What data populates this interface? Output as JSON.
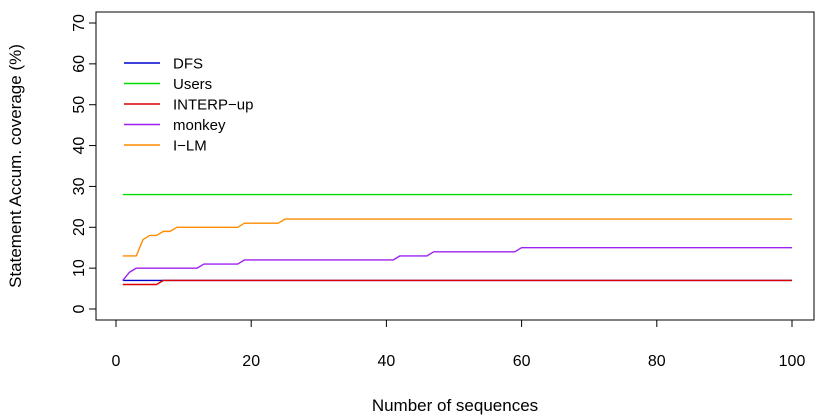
{
  "chart_data": {
    "type": "line",
    "title": "",
    "xlabel": "Number of sequences",
    "ylabel": "Statement Accum. coverage (%)",
    "xlim": [
      0,
      100
    ],
    "ylim": [
      0,
      70
    ],
    "x_ticks": [
      0,
      20,
      40,
      60,
      80,
      100
    ],
    "y_ticks": [
      0,
      10,
      20,
      30,
      40,
      50,
      60,
      70
    ],
    "grid": false,
    "legend_position": "top-left",
    "series": [
      {
        "name": "DFS",
        "color": "#0000CD",
        "points": [
          [
            1,
            7
          ],
          [
            100,
            7
          ]
        ]
      },
      {
        "name": "Users",
        "color": "#00DD00",
        "points": [
          [
            1,
            28
          ],
          [
            100,
            28
          ]
        ]
      },
      {
        "name": "INTERP−up",
        "color": "#DD0000",
        "points": [
          [
            1,
            6
          ],
          [
            6,
            6
          ],
          [
            7,
            7
          ],
          [
            100,
            7
          ]
        ]
      },
      {
        "name": "monkey",
        "color": "#A020F0",
        "points": [
          [
            1,
            7
          ],
          [
            2,
            9
          ],
          [
            3,
            10
          ],
          [
            12,
            10
          ],
          [
            13,
            11
          ],
          [
            18,
            11
          ],
          [
            19,
            12
          ],
          [
            41,
            12
          ],
          [
            42,
            13
          ],
          [
            46,
            13
          ],
          [
            47,
            14
          ],
          [
            59,
            14
          ],
          [
            60,
            15
          ],
          [
            100,
            15
          ]
        ]
      },
      {
        "name": "I−LM",
        "color": "#FF8C00",
        "points": [
          [
            1,
            13
          ],
          [
            3,
            13
          ],
          [
            4,
            17
          ],
          [
            5,
            18
          ],
          [
            6,
            18
          ],
          [
            7,
            19
          ],
          [
            8,
            19
          ],
          [
            9,
            20
          ],
          [
            18,
            20
          ],
          [
            19,
            21
          ],
          [
            24,
            21
          ],
          [
            25,
            22
          ],
          [
            100,
            22
          ]
        ]
      }
    ]
  }
}
